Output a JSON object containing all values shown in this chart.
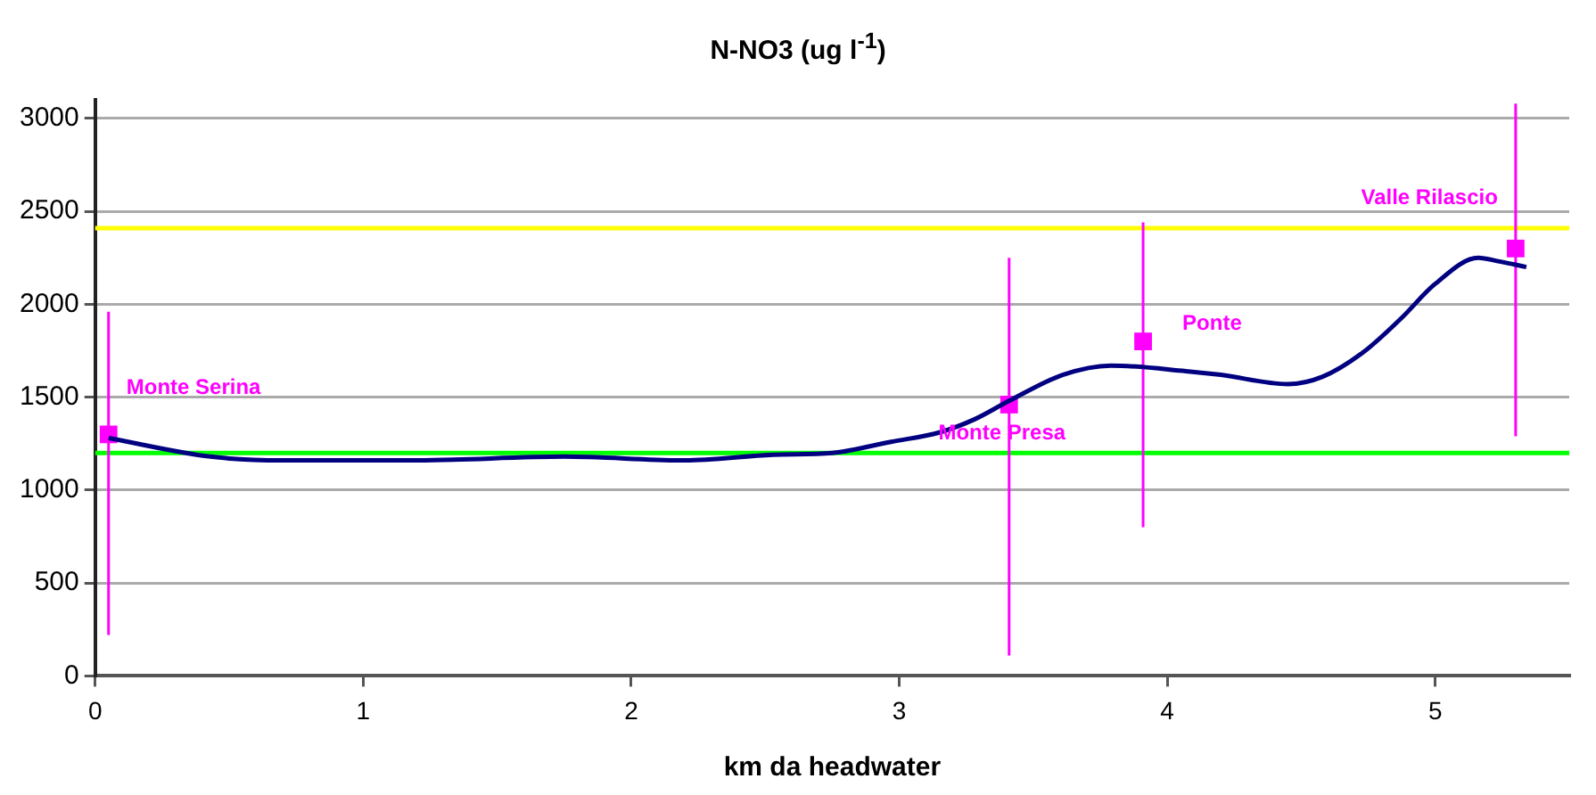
{
  "chart_data": {
    "type": "line",
    "title": "N-NO3 (ug l$^{-1}$)",
    "xlabel": "km da headwater",
    "xlim": [
      0,
      5.5
    ],
    "xticks": [
      0,
      1,
      2,
      3,
      4,
      5
    ],
    "ylim": [
      0,
      3100
    ],
    "yticks": [
      0,
      500,
      1000,
      1500,
      2000,
      2500,
      3000
    ],
    "grid": "y",
    "legend": false,
    "series": [
      {
        "color": "#000080",
        "marker": "none",
        "x": [
          0.05,
          0.43,
          0.7,
          1.2,
          1.75,
          2.2,
          2.53,
          2.75,
          2.97,
          3.15,
          3.28,
          3.41,
          3.61,
          3.79,
          4.07,
          4.2,
          4.45,
          4.58,
          4.73,
          4.87,
          5.0,
          5.16,
          5.24,
          5.34
        ],
        "values": [
          1280,
          1180,
          1160,
          1160,
          1180,
          1160,
          1190,
          1200,
          1260,
          1310,
          1380,
          1480,
          1620,
          1670,
          1640,
          1620,
          1570,
          1610,
          1740,
          1920,
          2110,
          2250,
          2230,
          2200
        ]
      },
      {
        "type": "scatter",
        "color": "#ff00ff",
        "marker": "square",
        "x": [
          0.05,
          3.41,
          3.91,
          5.3
        ],
        "values": [
          1300,
          1460,
          1800,
          2300
        ],
        "errors": [
          [
            220,
            1960
          ],
          [
            110,
            2250
          ],
          [
            800,
            2440
          ],
          [
            1290,
            3080
          ]
        ]
      }
    ],
    "ref_lines": [
      {
        "axis": "y",
        "value": 2410,
        "color": "#ffff00"
      },
      {
        "axis": "y",
        "value": 1200,
        "color": "#00ff00"
      }
    ],
    "annotations": [
      {
        "text": "Monte Serina",
        "x": 0.05,
        "y": 1300
      },
      {
        "text": "Monte Presa",
        "x": 3.41,
        "y": 1460
      },
      {
        "text": "Ponte",
        "x": 3.91,
        "y": 1800
      },
      {
        "text": "Valle Rilascio",
        "x": 5.3,
        "y": 2300
      }
    ]
  }
}
